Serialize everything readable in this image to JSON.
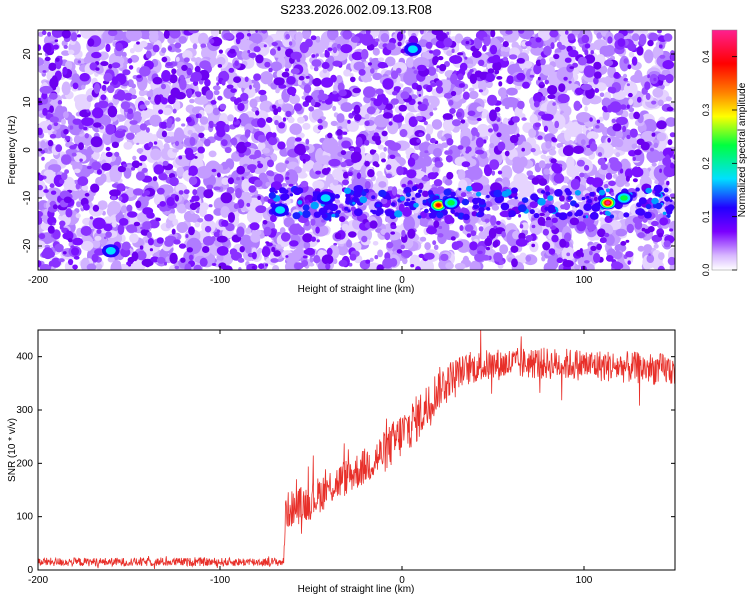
{
  "title": "S233.2026.002.09.13.R08",
  "chart_data": [
    {
      "type": "heatmap",
      "name": "spectrogram",
      "xlabel": "Height of straight line (km)",
      "ylabel": "Frequency (Hz)",
      "xlim": [
        -200,
        150
      ],
      "ylim": [
        -25,
        25
      ],
      "xticks": [
        -200,
        -100,
        0,
        100
      ],
      "yticks": [
        -20,
        -10,
        0,
        10,
        20
      ],
      "colorbar": {
        "label": "Normalized spectral amplitude",
        "range": [
          0.0,
          0.45
        ],
        "ticks": [
          0.0,
          0.1,
          0.2,
          0.3,
          0.4
        ],
        "tick_labels": [
          "0.0",
          "0.1",
          "0.2",
          "0.3",
          "0.4"
        ],
        "colors": [
          "#ffffff",
          "#7a00ff",
          "#2200ff",
          "#00e0ff",
          "#00ff40",
          "#ffff00",
          "#ff8000",
          "#ff0000",
          "#ff2090"
        ]
      },
      "signal_band": {
        "x_start": -75,
        "x_end": 150,
        "freq_center": -11,
        "freq_halfwidth": 3
      },
      "peaks": [
        {
          "x": 20,
          "y": -11.5,
          "amplitude": 0.42
        },
        {
          "x": 27,
          "y": -11,
          "amplitude": 0.2
        },
        {
          "x": 113,
          "y": -11,
          "amplitude": 0.44
        },
        {
          "x": 122,
          "y": -10,
          "amplitude": 0.22
        },
        {
          "x": -67,
          "y": -12.5,
          "amplitude": 0.13
        },
        {
          "x": -160,
          "y": -21,
          "amplitude": 0.1
        },
        {
          "x": -42,
          "y": -10,
          "amplitude": 0.1
        },
        {
          "x": 6,
          "y": 21,
          "amplitude": 0.1
        }
      ]
    },
    {
      "type": "line",
      "name": "snr",
      "xlabel": "Height of straight line (km)",
      "ylabel": "SNR (10 * v/v)",
      "xlim": [
        -200,
        150
      ],
      "ylim": [
        0,
        450
      ],
      "xticks": [
        -200,
        -100,
        0,
        100
      ],
      "yticks": [
        0,
        100,
        200,
        300,
        400
      ],
      "color": "#e8302a",
      "profile_x": [
        -200,
        -65,
        -64,
        -50,
        -40,
        -30,
        -20,
        -10,
        0,
        10,
        20,
        25,
        30,
        40,
        50,
        70,
        100,
        150
      ],
      "profile_y": [
        15,
        15,
        110,
        130,
        155,
        175,
        195,
        220,
        255,
        290,
        340,
        355,
        370,
        380,
        385,
        388,
        385,
        375
      ],
      "noise_amplitude": [
        8,
        8,
        35,
        35,
        35,
        35,
        35,
        40,
        45,
        45,
        40,
        35,
        30,
        30,
        30,
        30,
        30,
        30
      ]
    }
  ]
}
